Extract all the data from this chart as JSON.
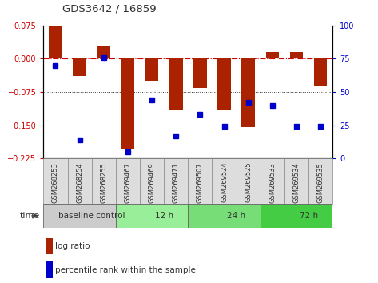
{
  "title": "GDS3642 / 16859",
  "categories": [
    "GSM268253",
    "GSM268254",
    "GSM268255",
    "GSM269467",
    "GSM269469",
    "GSM269471",
    "GSM269507",
    "GSM269524",
    "GSM269525",
    "GSM269533",
    "GSM269534",
    "GSM269535"
  ],
  "log_ratio": [
    0.075,
    -0.038,
    0.028,
    -0.205,
    -0.05,
    -0.115,
    -0.065,
    -0.115,
    -0.155,
    0.015,
    0.015,
    -0.06
  ],
  "percentile_rank": [
    70,
    14,
    76,
    5,
    44,
    17,
    33,
    24,
    42,
    40,
    24,
    24
  ],
  "ylim_left": [
    -0.225,
    0.075
  ],
  "ylim_right": [
    0,
    100
  ],
  "yticks_left": [
    0.075,
    0,
    -0.075,
    -0.15,
    -0.225
  ],
  "yticks_right": [
    100,
    75,
    50,
    25,
    0
  ],
  "bar_color": "#aa2200",
  "dot_color": "#0000cc",
  "zero_line_color": "#cc0000",
  "dotted_line_color": "#333333",
  "time_groups": [
    {
      "label": "baseline control",
      "start": 0,
      "end": 3,
      "color": "#cccccc"
    },
    {
      "label": "12 h",
      "start": 3,
      "end": 6,
      "color": "#99ee99"
    },
    {
      "label": "24 h",
      "start": 6,
      "end": 9,
      "color": "#77dd77"
    },
    {
      "label": "72 h",
      "start": 9,
      "end": 12,
      "color": "#44cc44"
    }
  ],
  "time_label": "time",
  "legend_items": [
    {
      "label": "log ratio",
      "color": "#aa2200"
    },
    {
      "label": "percentile rank within the sample",
      "color": "#0000cc"
    }
  ],
  "bg_color": "#ffffff",
  "plot_bg_color": "#ffffff",
  "tick_label_color_left": "#cc0000",
  "tick_label_color_right": "#0000cc",
  "col_bg_color": "#dddddd",
  "col_border_color": "#888888"
}
